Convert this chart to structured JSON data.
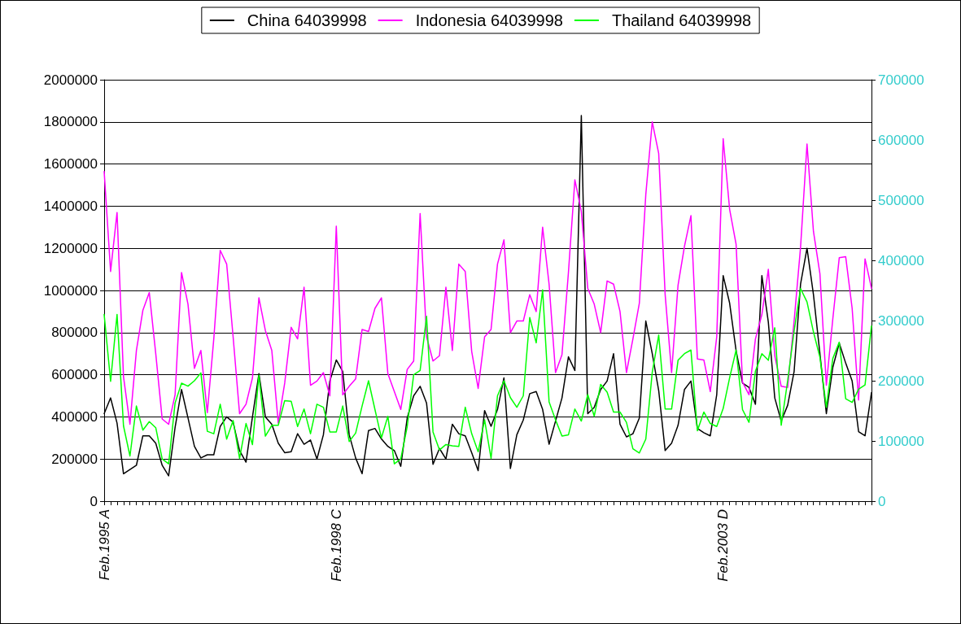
{
  "chart_data": {
    "type": "line",
    "categories": [
      "Feb.1995 A",
      null,
      null,
      null,
      null,
      null,
      null,
      null,
      null,
      null,
      null,
      null,
      null,
      null,
      null,
      null,
      null,
      null,
      null,
      null,
      null,
      null,
      null,
      null,
      null,
      null,
      null,
      null,
      null,
      null,
      null,
      null,
      null,
      null,
      null,
      null,
      "Feb.1998 C",
      null,
      null,
      null,
      null,
      null,
      null,
      null,
      null,
      null,
      null,
      null,
      null,
      null,
      null,
      null,
      null,
      null,
      null,
      null,
      null,
      null,
      null,
      null,
      null,
      null,
      null,
      null,
      null,
      null,
      null,
      null,
      null,
      null,
      null,
      null,
      null,
      null,
      null,
      null,
      null,
      null,
      null,
      null,
      null,
      null,
      null,
      null,
      null,
      null,
      null,
      null,
      null,
      null,
      null,
      null,
      null,
      null,
      null,
      null,
      "Feb.2003 D",
      null,
      null,
      null,
      null,
      null,
      null,
      null,
      null,
      null,
      null,
      null,
      null,
      null,
      null,
      null,
      null,
      null,
      null,
      null,
      null,
      null,
      null,
      null
    ],
    "series": [
      {
        "name": "China 64039998",
        "color": "#000000",
        "values": [
          415000,
          490000,
          370000,
          130000,
          150000,
          170000,
          310000,
          310000,
          275000,
          170000,
          120000,
          350000,
          530000,
          395000,
          260000,
          205000,
          220000,
          220000,
          355000,
          400000,
          375000,
          240000,
          185000,
          400000,
          605000,
          400000,
          365000,
          275000,
          230000,
          235000,
          320000,
          270000,
          290000,
          200000,
          315000,
          570000,
          670000,
          615000,
          315000,
          205000,
          130000,
          335000,
          345000,
          295000,
          260000,
          240000,
          165000,
          395000,
          500000,
          545000,
          465000,
          175000,
          250000,
          200000,
          365000,
          320000,
          310000,
          230000,
          145000,
          430000,
          355000,
          435000,
          585000,
          155000,
          315000,
          385000,
          510000,
          520000,
          435000,
          270000,
          380000,
          490000,
          685000,
          620000,
          1830000,
          415000,
          445000,
          530000,
          570000,
          700000,
          365000,
          305000,
          320000,
          395000,
          855000,
          700000,
          525000,
          240000,
          275000,
          360000,
          530000,
          570000,
          345000,
          325000,
          310000,
          505000,
          1070000,
          940000,
          715000,
          560000,
          540000,
          460000,
          1070000,
          850000,
          490000,
          380000,
          455000,
          615000,
          1030000,
          1200000,
          980000,
          700000,
          415000,
          635000,
          750000,
          655000,
          570000,
          330000,
          310000,
          515000
        ]
      },
      {
        "name": "Indonesia 64039998",
        "color": "#ff00ff",
        "values": [
          1565000,
          1090000,
          1370000,
          590000,
          365000,
          715000,
          905000,
          990000,
          700000,
          390000,
          365000,
          505000,
          1085000,
          935000,
          630000,
          715000,
          420000,
          770000,
          1190000,
          1125000,
          780000,
          415000,
          460000,
          585000,
          965000,
          810000,
          715000,
          370000,
          560000,
          825000,
          770000,
          1015000,
          550000,
          570000,
          610000,
          500000,
          1305000,
          505000,
          545000,
          580000,
          815000,
          805000,
          915000,
          965000,
          605000,
          520000,
          435000,
          625000,
          665000,
          1365000,
          780000,
          665000,
          690000,
          1015000,
          715000,
          1125000,
          1090000,
          710000,
          535000,
          780000,
          815000,
          1125000,
          1240000,
          800000,
          855000,
          855000,
          980000,
          900000,
          1300000,
          1030000,
          610000,
          695000,
          1085000,
          1525000,
          1375000,
          1010000,
          935000,
          800000,
          1045000,
          1030000,
          900000,
          610000,
          770000,
          940000,
          1455000,
          1800000,
          1650000,
          980000,
          610000,
          1025000,
          1210000,
          1355000,
          675000,
          670000,
          520000,
          780000,
          1720000,
          1385000,
          1220000,
          565000,
          505000,
          770000,
          885000,
          1100000,
          690000,
          545000,
          540000,
          855000,
          1205000,
          1695000,
          1280000,
          1080000,
          550000,
          865000,
          1155000,
          1160000,
          915000,
          480000,
          1150000,
          1010000
        ]
      },
      {
        "name": "Thailand 64039998",
        "color": "#00ff00",
        "axis": "y2",
        "values": [
          310000,
          199000,
          310000,
          125000,
          75000,
          158000,
          118000,
          132000,
          122000,
          70000,
          62000,
          163000,
          196000,
          191000,
          200000,
          213000,
          116000,
          112000,
          161000,
          103000,
          134000,
          71000,
          129000,
          94000,
          209000,
          108000,
          126000,
          126000,
          167000,
          166000,
          124000,
          153000,
          112000,
          161000,
          156000,
          115000,
          115000,
          158000,
          99000,
          113000,
          158000,
          200000,
          152000,
          105000,
          141000,
          62000,
          70000,
          124000,
          210000,
          217000,
          307000,
          115000,
          85000,
          94000,
          92000,
          91000,
          156000,
          112000,
          82000,
          135000,
          71000,
          175000,
          200000,
          172000,
          156000,
          175000,
          305000,
          263000,
          351000,
          165000,
          135000,
          108000,
          110000,
          153000,
          133000,
          177000,
          141000,
          194000,
          181000,
          148000,
          148000,
          131000,
          87000,
          80000,
          103000,
          214000,
          276000,
          153000,
          153000,
          234000,
          245000,
          251000,
          117000,
          148000,
          129000,
          124000,
          154000,
          205000,
          251000,
          152000,
          131000,
          216000,
          245000,
          234000,
          288000,
          126000,
          200000,
          283000,
          353000,
          331000,
          281000,
          239000,
          156000,
          237000,
          264000,
          170000,
          164000,
          186000,
          193000,
          291000
        ]
      }
    ],
    "ylim": [
      0,
      2000000
    ],
    "yticks": [
      0,
      200000,
      400000,
      600000,
      800000,
      1000000,
      1200000,
      1400000,
      1600000,
      1800000,
      2000000
    ],
    "y2lim": [
      0,
      700000
    ],
    "y2ticks": [
      0,
      100000,
      200000,
      300000,
      400000,
      500000,
      600000,
      700000
    ],
    "grid": "y",
    "legend": "top",
    "marker": "none",
    "line_style": "solid"
  }
}
